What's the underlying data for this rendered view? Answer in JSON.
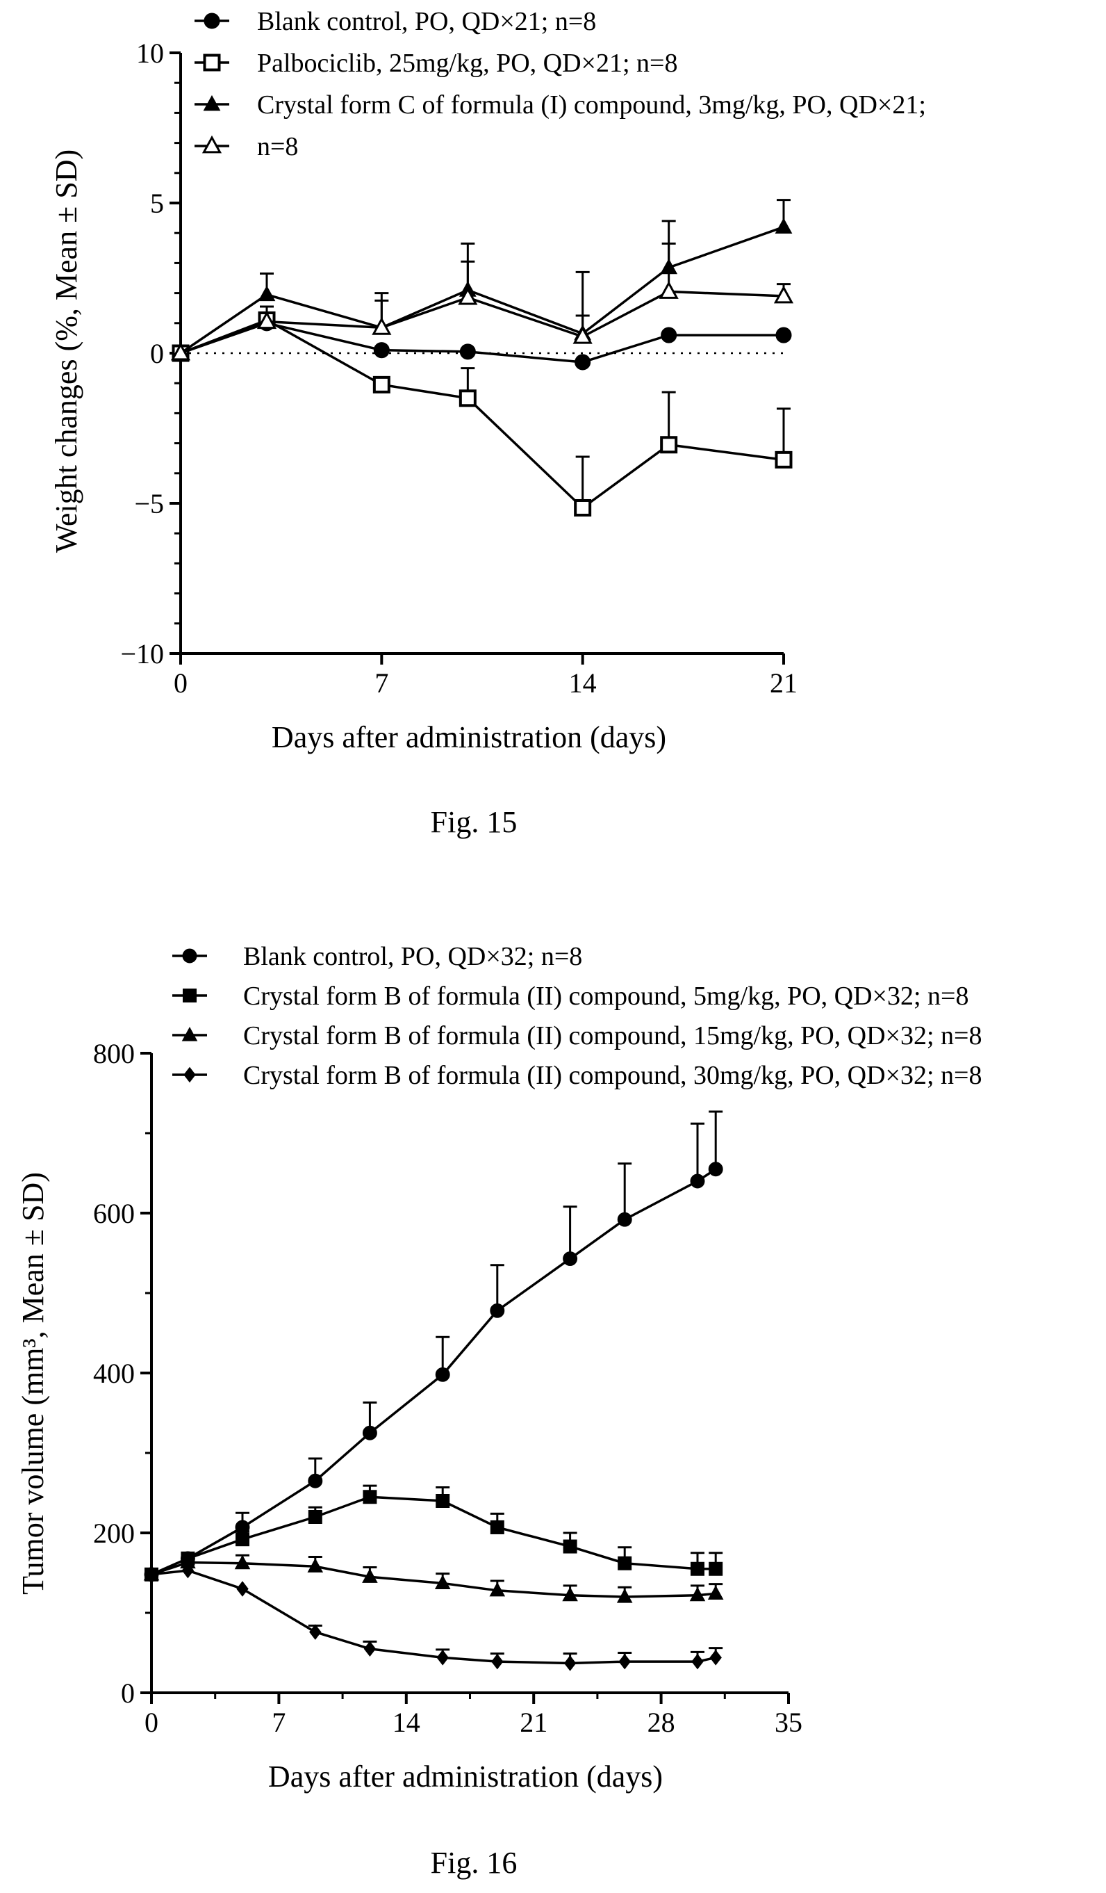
{
  "chart_data": [
    {
      "type": "line",
      "caption": "Fig. 15",
      "xlabel": "Days after administration (days)",
      "ylabel": "Weight changes (%, Mean ± SD)",
      "xlim": [
        0,
        21
      ],
      "ylim": [
        -10,
        10
      ],
      "xticks": [
        "0",
        "7",
        "14",
        "21"
      ],
      "yticks": [
        "10",
        "5",
        "0",
        "−5",
        "−10"
      ],
      "zero_reference_line": "dotted",
      "legend": [
        "Blank control, PO, QD×21; n=8",
        "Palbociclib, 25mg/kg, PO, QD×21; n=8",
        "Crystal form C of formula (I) compound, 3mg/kg, PO, QD×21;",
        "n=8"
      ],
      "series": [
        {
          "marker": "filled-circle",
          "x": [
            0,
            3,
            7,
            10,
            14,
            17,
            21
          ],
          "y": [
            0,
            1.0,
            0.1,
            0.05,
            -0.3,
            0.6,
            0.6
          ],
          "sd": [
            0,
            0,
            0,
            0,
            0,
            0,
            0
          ]
        },
        {
          "marker": "open-square",
          "x": [
            0,
            3,
            7,
            10,
            14,
            17,
            21
          ],
          "y": [
            0,
            1.1,
            -1.05,
            -1.5,
            -5.15,
            -3.05,
            -3.55
          ],
          "sd": [
            0,
            0,
            0,
            1.0,
            1.7,
            1.75,
            1.7
          ]
        },
        {
          "marker": "filled-triangle",
          "x": [
            0,
            3,
            7,
            10,
            14,
            17,
            21
          ],
          "y": [
            0,
            1.95,
            0.85,
            2.1,
            0.65,
            2.85,
            4.2
          ],
          "sd": [
            0,
            0.7,
            1.15,
            1.55,
            2.05,
            1.55,
            0.9
          ]
        },
        {
          "marker": "open-triangle",
          "x": [
            0,
            3,
            7,
            10,
            14,
            17,
            21
          ],
          "y": [
            0,
            1.05,
            0.85,
            1.85,
            0.55,
            2.05,
            1.9
          ],
          "sd": [
            0,
            0.5,
            0.9,
            1.2,
            0.7,
            1.6,
            0.4
          ]
        }
      ]
    },
    {
      "type": "line",
      "caption": "Fig. 16",
      "xlabel": "Days after administration (days)",
      "ylabel": "Tumor volume (mm³, Mean ± SD)",
      "xlim": [
        0,
        35
      ],
      "ylim": [
        0,
        800
      ],
      "xticks": [
        "0",
        "7",
        "14",
        "21",
        "28",
        "35"
      ],
      "yticks": [
        "800",
        "600",
        "400",
        "200",
        "0"
      ],
      "legend": [
        "Blank control, PO, QD×32; n=8",
        "Crystal form B of formula (II) compound, 5mg/kg, PO, QD×32; n=8",
        "Crystal form B of formula (II) compound, 15mg/kg, PO, QD×32; n=8",
        "Crystal form B of formula (II) compound, 30mg/kg, PO, QD×32; n=8"
      ],
      "series": [
        {
          "marker": "filled-circle",
          "x": [
            0,
            2,
            5,
            9,
            12,
            16,
            19,
            23,
            26,
            30,
            31
          ],
          "y": [
            148,
            168,
            207,
            265,
            325,
            398,
            478,
            543,
            592,
            640,
            655
          ],
          "sd": [
            0,
            0,
            18,
            28,
            38,
            47,
            57,
            65,
            70,
            72,
            72
          ]
        },
        {
          "marker": "filled-square",
          "x": [
            0,
            2,
            5,
            9,
            12,
            16,
            19,
            23,
            26,
            30,
            31
          ],
          "y": [
            148,
            168,
            192,
            220,
            245,
            240,
            207,
            183,
            162,
            155,
            155
          ],
          "sd": [
            0,
            0,
            10,
            12,
            14,
            17,
            17,
            17,
            20,
            20,
            20
          ]
        },
        {
          "marker": "filled-triangle",
          "x": [
            0,
            2,
            5,
            9,
            12,
            16,
            19,
            23,
            26,
            30,
            31
          ],
          "y": [
            148,
            163,
            162,
            158,
            145,
            137,
            128,
            122,
            120,
            122,
            124
          ],
          "sd": [
            0,
            0,
            10,
            12,
            12,
            12,
            12,
            12,
            12,
            12,
            12
          ]
        },
        {
          "marker": "filled-diamond",
          "x": [
            0,
            2,
            5,
            9,
            12,
            16,
            19,
            23,
            26,
            30,
            31
          ],
          "y": [
            148,
            153,
            130,
            76,
            55,
            44,
            39,
            37,
            39,
            39,
            44
          ],
          "sd": [
            0,
            0,
            0,
            8,
            9,
            10,
            10,
            12,
            11,
            12,
            12
          ]
        }
      ]
    }
  ]
}
